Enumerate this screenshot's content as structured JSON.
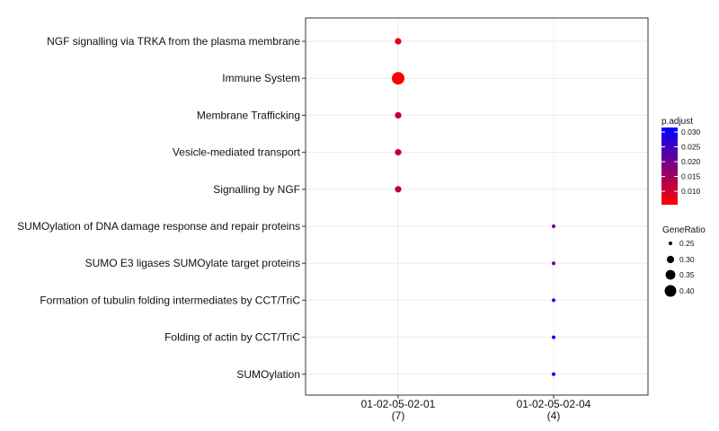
{
  "chart_data": {
    "type": "scatter",
    "title": "",
    "xlabel": "",
    "ylabel": "",
    "categories": [
      "NGF signalling via TRKA from the plasma membrane",
      "Immune System",
      "Membrane Trafficking",
      "Vesicle-mediated transport",
      "Signalling by NGF",
      "SUMOylation of DNA damage response and repair proteins",
      "SUMO E3 ligases SUMOylate target proteins",
      "Formation of tubulin folding intermediates by CCT/TriC",
      "Folding of actin by CCT/TriC",
      "SUMOylation"
    ],
    "x_groups": [
      {
        "label": "01-02-05-02-01",
        "count": "(7)"
      },
      {
        "label": "01-02-05-02-04",
        "count": "(4)"
      }
    ],
    "points": [
      {
        "category": "NGF signalling via TRKA from the plasma membrane",
        "group": "01-02-05-02-01",
        "gene_ratio": 0.286,
        "p_adjust": 0.008
      },
      {
        "category": "Immune System",
        "group": "01-02-05-02-01",
        "gene_ratio": 0.429,
        "p_adjust": 0.006
      },
      {
        "category": "Membrane Trafficking",
        "group": "01-02-05-02-01",
        "gene_ratio": 0.286,
        "p_adjust": 0.012
      },
      {
        "category": "Vesicle-mediated transport",
        "group": "01-02-05-02-01",
        "gene_ratio": 0.286,
        "p_adjust": 0.012
      },
      {
        "category": "Signalling by NGF",
        "group": "01-02-05-02-01",
        "gene_ratio": 0.286,
        "p_adjust": 0.013
      },
      {
        "category": "SUMOylation of DNA damage response and repair proteins",
        "group": "01-02-05-02-04",
        "gene_ratio": 0.25,
        "p_adjust": 0.021
      },
      {
        "category": "SUMO E3 ligases SUMOylate target proteins",
        "group": "01-02-05-02-04",
        "gene_ratio": 0.25,
        "p_adjust": 0.021
      },
      {
        "category": "Formation of tubulin folding intermediates by CCT/TriC",
        "group": "01-02-05-02-04",
        "gene_ratio": 0.25,
        "p_adjust": 0.028
      },
      {
        "category": "Folding of actin by CCT/TriC",
        "group": "01-02-05-02-04",
        "gene_ratio": 0.25,
        "p_adjust": 0.031
      },
      {
        "category": "SUMOylation",
        "group": "01-02-05-02-04",
        "gene_ratio": 0.25,
        "p_adjust": 0.031
      }
    ],
    "color_legend": {
      "title": "p.adjust",
      "ticks": [
        "0.030",
        "0.025",
        "0.020",
        "0.015",
        "0.010"
      ],
      "range": [
        0.0055,
        0.0315
      ],
      "low_color": "#ff0000",
      "high_color": "#0000ff"
    },
    "size_legend": {
      "title": "GeneRatio",
      "ticks": [
        "0.25",
        "0.30",
        "0.35",
        "0.40"
      ],
      "range": [
        0.25,
        0.429
      ]
    },
    "grid": true,
    "legend_position": "right"
  }
}
